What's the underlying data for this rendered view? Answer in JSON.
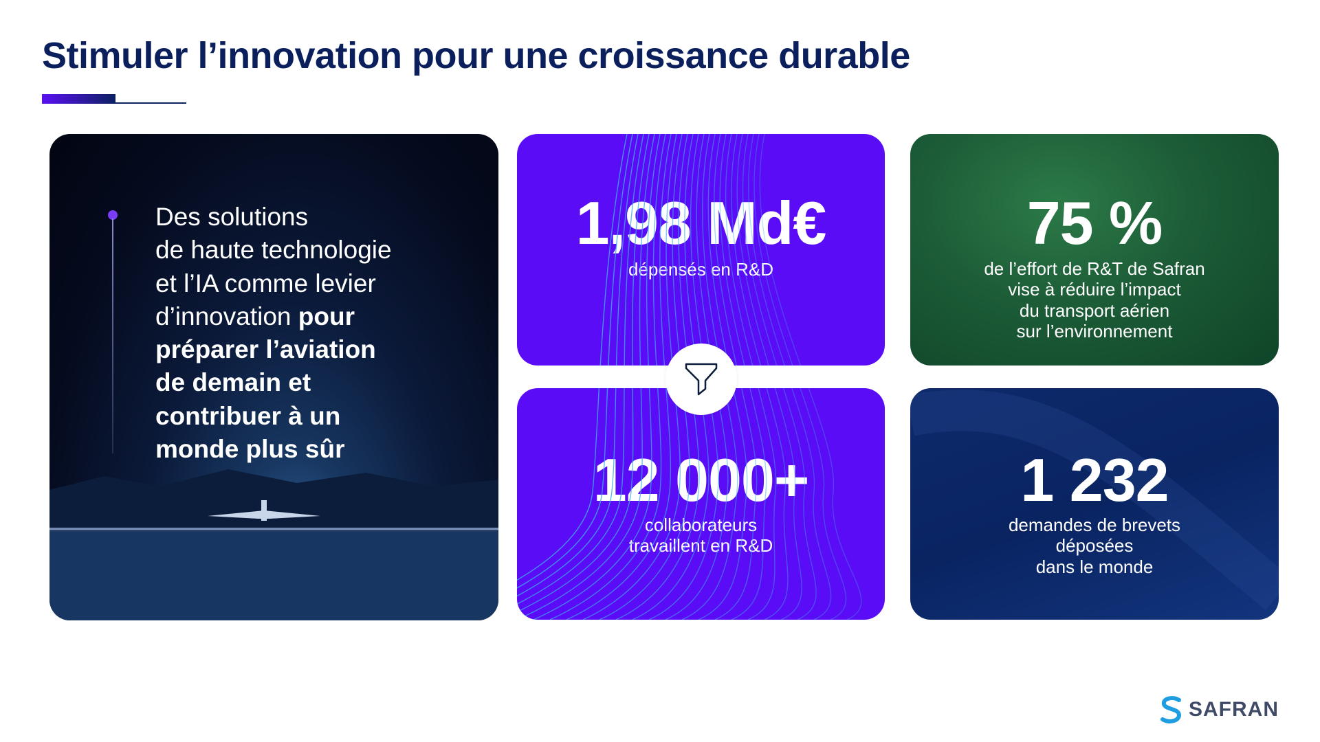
{
  "title": "Stimuler l’innovation pour une croissance durable",
  "left_card": {
    "lines": [
      "Des solutions",
      "de haute technologie",
      "et l’IA comme levier",
      "d’innovation "
    ],
    "bold_inline": "pour",
    "bold_lines": [
      "préparer l’aviation",
      "de demain et",
      "contribuer à un",
      "monde plus sûr"
    ]
  },
  "stats": [
    {
      "value": "1,98 Md€",
      "lines": [
        "dépensés en R&D"
      ]
    },
    {
      "value": "12 000+",
      "lines": [
        "collaborateurs",
        "travaillent en R&D"
      ]
    },
    {
      "value": "75 %",
      "lines": [
        "de l’effort de R&T de Safran",
        "vise à réduire l’impact",
        "du transport aérien",
        "sur l’environnement"
      ]
    },
    {
      "value": "1 232",
      "lines": [
        "demandes de brevets",
        "déposées",
        "dans le monde"
      ]
    }
  ],
  "connector_icon": "funnel-icon",
  "logo": {
    "text": "SAFRAN"
  },
  "colors": {
    "title": "#0a1f5c",
    "purple": "#5b0cf7",
    "green": "#1c5c37",
    "navy": "#0a2462",
    "wave": "#3fa8f0"
  }
}
